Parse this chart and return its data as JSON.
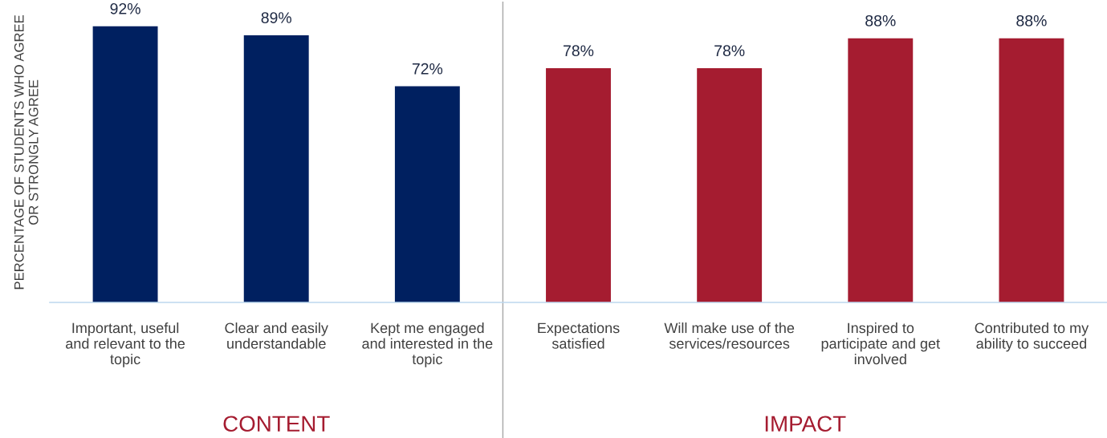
{
  "chart_data": {
    "type": "bar",
    "ylabel": "PERCENTAGE OF STUDENTS WHO AGREE\nOR STRONGLY AGREE",
    "categories": [
      "Important, useful\nand relevant to the\ntopic",
      "Clear and easily\nunderstandable",
      "Kept me engaged\nand interested in the\ntopic",
      "Expectations\nsatisfied",
      "Will make use of the\nservices/resources",
      "Inspired to\nparticipate and get\ninvolved",
      "Contributed to my\nability to succeed"
    ],
    "values": [
      92,
      89,
      72,
      78,
      78,
      88,
      88
    ],
    "colors": [
      "#002060",
      "#002060",
      "#002060",
      "#a51c30",
      "#a51c30",
      "#a51c30",
      "#a51c30"
    ],
    "value_labels": [
      "92%",
      "89%",
      "72%",
      "78%",
      "78%",
      "88%",
      "88%"
    ],
    "ylim": [
      0,
      100
    ],
    "tick_labels": "x",
    "annotations": [
      "CONTENT",
      "IMPACT"
    ],
    "grid": false,
    "legend": false
  }
}
